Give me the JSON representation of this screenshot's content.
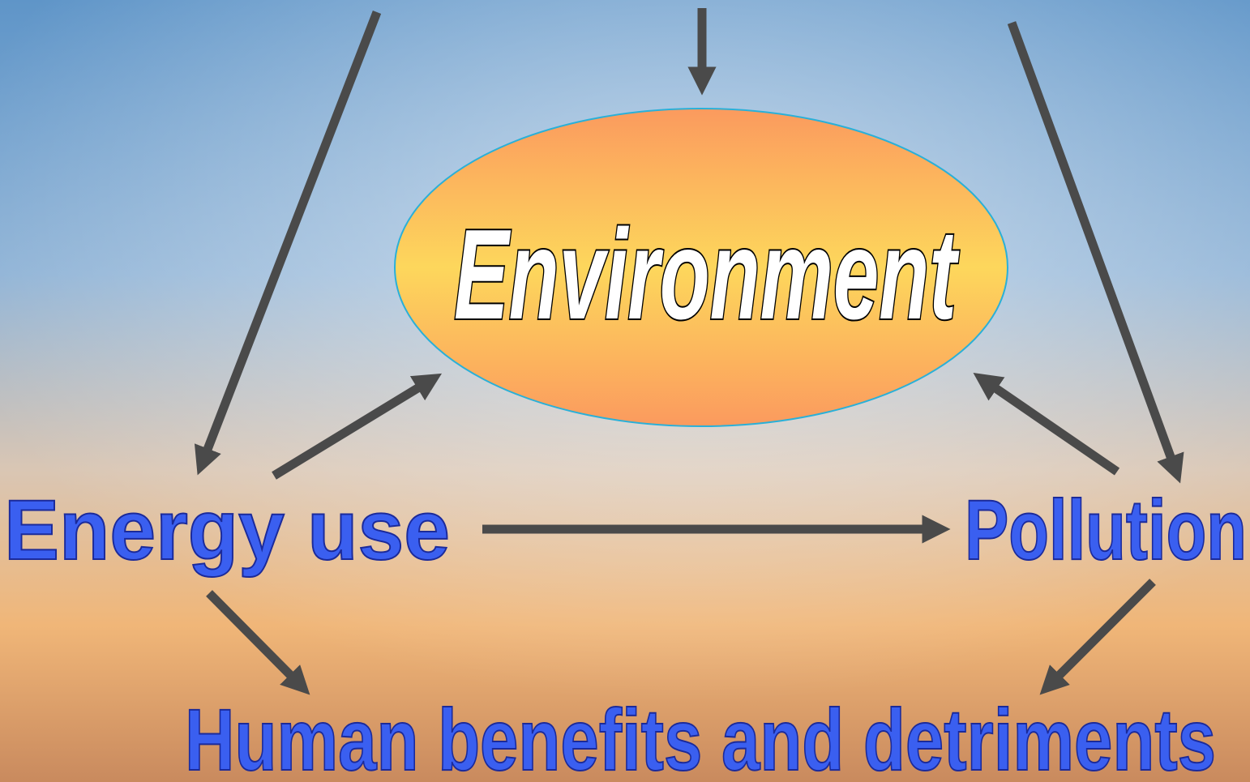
{
  "nodes": [
    {
      "label": "Environment"
    },
    {
      "label": "Energy use"
    },
    {
      "label": "Pollution"
    },
    {
      "label": "Human benefits and detriments"
    }
  ]
}
